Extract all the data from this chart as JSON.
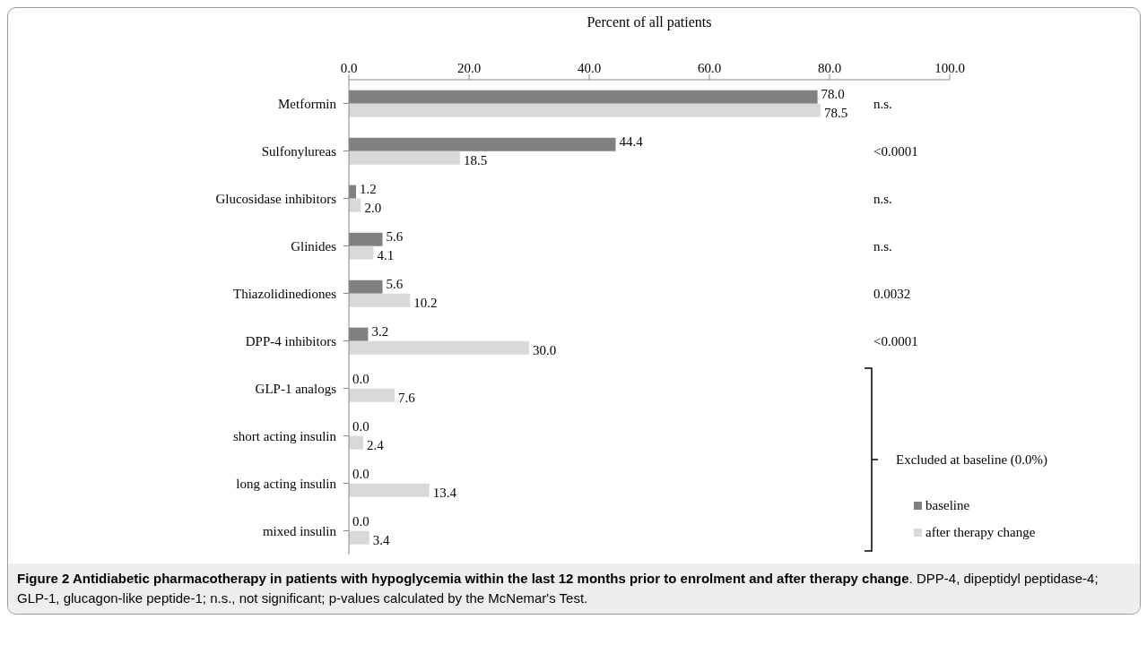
{
  "chart_data": {
    "type": "bar",
    "orientation": "horizontal",
    "xlabel": "Percent of all patients",
    "categories": [
      "Metformin",
      "Sulfonylureas",
      "Glucosidase inhibitors",
      "Glinides",
      "Thiazolidinediones",
      "DPP-4 inhibitors",
      "GLP-1 analogs",
      "short acting insulin",
      "long acting insulin",
      "mixed insulin"
    ],
    "series": [
      {
        "name": "baseline",
        "color": "#808080",
        "values": [
          78.0,
          44.4,
          1.2,
          5.6,
          5.6,
          3.2,
          0.0,
          0.0,
          0.0,
          0.0
        ],
        "value_labels": [
          "78.0",
          "44.4",
          "1.2",
          "5.6",
          "5.6",
          "3.2",
          "0.0",
          "0.0",
          "0.0",
          "0.0"
        ]
      },
      {
        "name": "after therapy change",
        "color": "#d9d9d9",
        "values": [
          78.5,
          18.5,
          2.0,
          4.1,
          10.2,
          30.0,
          7.6,
          2.4,
          13.4,
          3.4
        ],
        "value_labels": [
          "78.5",
          "18.5",
          "2.0",
          "4.1",
          "10.2",
          "30.0",
          "7.6",
          "2.4",
          "13.4",
          "3.4"
        ]
      }
    ],
    "xlim": [
      0,
      100
    ],
    "xticks": [
      {
        "value": 0,
        "label": "0.0"
      },
      {
        "value": 20,
        "label": "20.0"
      },
      {
        "value": 40,
        "label": "40.0"
      },
      {
        "value": 60,
        "label": "60.0"
      },
      {
        "value": 80,
        "label": "80.0"
      },
      {
        "value": 100,
        "label": "100.0"
      }
    ],
    "grid": false,
    "legend": "bottom right",
    "annotations": [
      "n.s.",
      "<0.0001",
      "n.s.",
      "n.s.",
      "0.0032",
      "<0.0001",
      "Excluded at baseline (0.0%)",
      "Figure 2 Antidiabetic pharmacotherapy in patients with hypoglycemia within the last 12 months prior to enrolment and after therapy change",
      ". DPP-4, dipeptidyl peptidase-4; GLP-1, glucagon-like peptide-1; n.s., not significant; p-values calculated by the McNemar's Test."
    ]
  }
}
